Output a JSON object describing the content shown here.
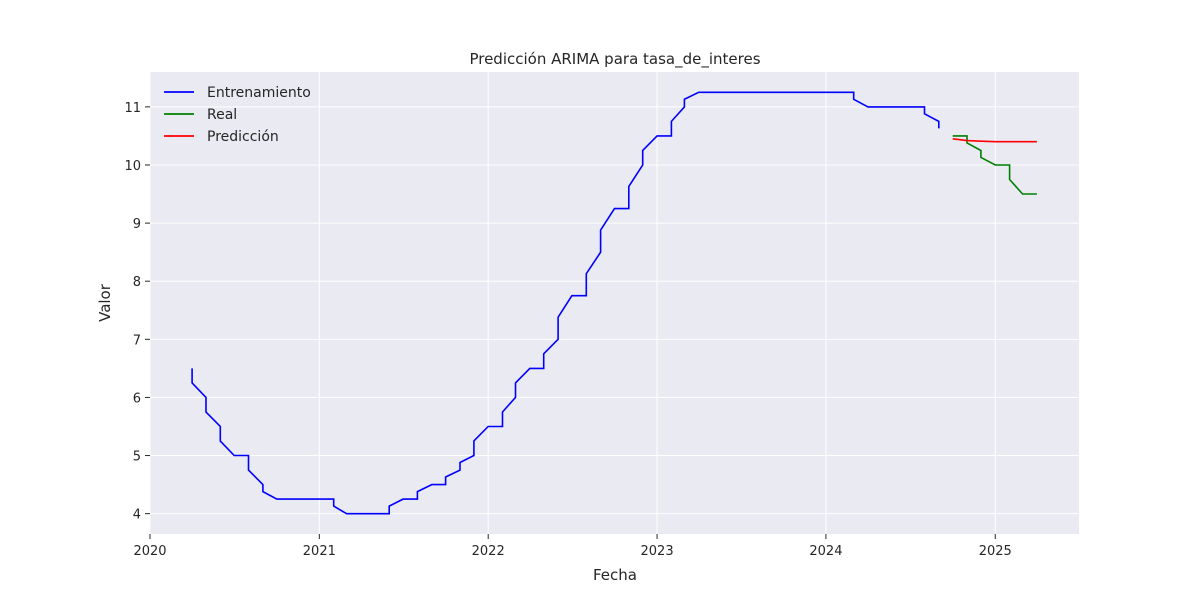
{
  "chart_data": {
    "type": "line",
    "title": "Predicción ARIMA para tasa_de_interes",
    "xlabel": "Fecha",
    "ylabel": "Valor",
    "xlim": [
      "2020-01-01",
      "2025-07-01"
    ],
    "ylim": [
      3.65,
      11.6
    ],
    "x_ticks": [
      "2020",
      "2021",
      "2022",
      "2023",
      "2024",
      "2025"
    ],
    "y_ticks": [
      "4",
      "5",
      "6",
      "7",
      "8",
      "9",
      "10",
      "11"
    ],
    "grid": true,
    "legend_position": "top-left",
    "series": [
      {
        "name": "Entrenamiento",
        "color": "#0000ff",
        "x": [
          "2020-04-01",
          "2020-04-01",
          "2020-05-01",
          "2020-05-01",
          "2020-06-01",
          "2020-06-01",
          "2020-07-01",
          "2020-07-01",
          "2020-08-01",
          "2020-08-01",
          "2020-09-01",
          "2020-09-01",
          "2020-10-01",
          "2020-10-01",
          "2020-11-01",
          "2020-12-01",
          "2021-01-01",
          "2021-02-01",
          "2021-02-01",
          "2021-03-01",
          "2021-04-01",
          "2021-05-01",
          "2021-06-01",
          "2021-06-01",
          "2021-07-01",
          "2021-08-01",
          "2021-08-01",
          "2021-09-01",
          "2021-10-01",
          "2021-10-01",
          "2021-11-01",
          "2021-11-01",
          "2021-12-01",
          "2021-12-01",
          "2022-01-01",
          "2022-02-01",
          "2022-02-01",
          "2022-03-01",
          "2022-03-01",
          "2022-04-01",
          "2022-05-01",
          "2022-05-01",
          "2022-06-01",
          "2022-06-01",
          "2022-07-01",
          "2022-08-01",
          "2022-08-01",
          "2022-09-01",
          "2022-09-01",
          "2022-10-01",
          "2022-11-01",
          "2022-11-01",
          "2022-12-01",
          "2022-12-01",
          "2023-01-01",
          "2023-02-01",
          "2023-02-01",
          "2023-03-01",
          "2023-03-01",
          "2023-04-01",
          "2023-05-01",
          "2023-06-01",
          "2023-07-01",
          "2023-08-01",
          "2023-09-01",
          "2023-10-01",
          "2023-11-01",
          "2023-12-01",
          "2024-01-01",
          "2024-02-01",
          "2024-03-01",
          "2024-03-01",
          "2024-04-01",
          "2024-05-01",
          "2024-06-01",
          "2024-07-01",
          "2024-08-01",
          "2024-08-01",
          "2024-09-01",
          "2024-09-01"
        ],
        "y": [
          6.5,
          6.25,
          6.0,
          5.75,
          5.5,
          5.25,
          5.0,
          5.0,
          5.0,
          4.75,
          4.5,
          4.38,
          4.25,
          4.25,
          4.25,
          4.25,
          4.25,
          4.25,
          4.13,
          4.0,
          4.0,
          4.0,
          4.0,
          4.13,
          4.25,
          4.25,
          4.38,
          4.5,
          4.5,
          4.63,
          4.75,
          4.88,
          5.0,
          5.25,
          5.5,
          5.5,
          5.75,
          6.0,
          6.25,
          6.5,
          6.5,
          6.75,
          7.0,
          7.38,
          7.75,
          7.75,
          8.13,
          8.5,
          8.88,
          9.25,
          9.25,
          9.63,
          10.0,
          10.25,
          10.5,
          10.5,
          10.75,
          11.0,
          11.13,
          11.25,
          11.25,
          11.25,
          11.25,
          11.25,
          11.25,
          11.25,
          11.25,
          11.25,
          11.25,
          11.25,
          11.25,
          11.13,
          11.0,
          11.0,
          11.0,
          11.0,
          11.0,
          10.88,
          10.75,
          10.63
        ]
      },
      {
        "name": "Real",
        "color": "#008000",
        "x": [
          "2024-10-01",
          "2024-11-01",
          "2024-11-01",
          "2024-12-01",
          "2024-12-01",
          "2025-01-01",
          "2025-02-01",
          "2025-02-01",
          "2025-03-01",
          "2025-04-01"
        ],
        "y": [
          10.5,
          10.5,
          10.38,
          10.25,
          10.13,
          10.0,
          10.0,
          9.75,
          9.5,
          9.5
        ]
      },
      {
        "name": "Predicción",
        "color": "#ff0000",
        "x": [
          "2024-10-01",
          "2024-11-01",
          "2024-12-01",
          "2025-01-01",
          "2025-02-01",
          "2025-03-01",
          "2025-04-01"
        ],
        "y": [
          10.45,
          10.42,
          10.41,
          10.4,
          10.4,
          10.4,
          10.4
        ]
      }
    ]
  }
}
